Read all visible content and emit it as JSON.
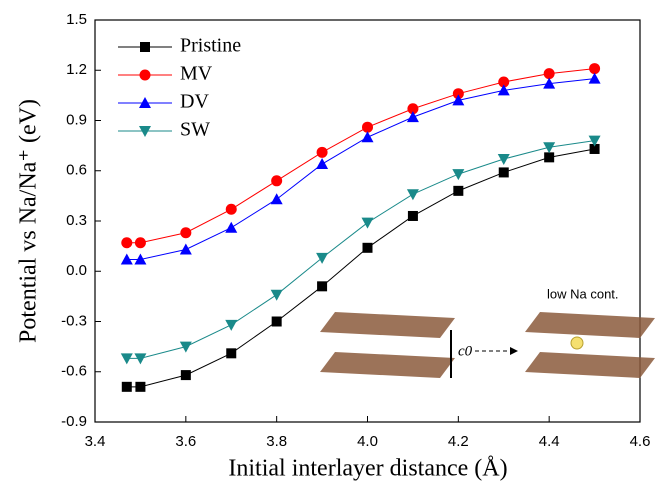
{
  "chart_data": {
    "type": "line",
    "xlabel": "Initial interlayer distance (Å)",
    "ylabel": "Potential vs Na/Na⁺ (eV)",
    "x": [
      3.47,
      3.5,
      3.6,
      3.7,
      3.8,
      3.9,
      4.0,
      4.1,
      4.2,
      4.3,
      4.4,
      4.5
    ],
    "series": [
      {
        "name": "Pristine",
        "color": "#000000",
        "marker": "square",
        "values": [
          -0.69,
          -0.69,
          -0.62,
          -0.49,
          -0.3,
          -0.09,
          0.14,
          0.33,
          0.48,
          0.59,
          0.68,
          0.73
        ]
      },
      {
        "name": "MV",
        "color": "#ff0000",
        "marker": "circle",
        "values": [
          0.17,
          0.17,
          0.23,
          0.37,
          0.54,
          0.71,
          0.86,
          0.97,
          1.06,
          1.13,
          1.18,
          1.21
        ]
      },
      {
        "name": "DV",
        "color": "#0000ff",
        "marker": "triangle-up",
        "values": [
          0.07,
          0.07,
          0.13,
          0.26,
          0.43,
          0.64,
          0.8,
          0.92,
          1.02,
          1.08,
          1.12,
          1.15
        ]
      },
      {
        "name": "SW",
        "color": "#1a8a8a",
        "marker": "triangle-down",
        "values": [
          -0.52,
          -0.52,
          -0.45,
          -0.32,
          -0.14,
          0.08,
          0.29,
          0.46,
          0.58,
          0.67,
          0.74,
          0.78
        ]
      }
    ],
    "xlim": [
      3.4,
      4.6
    ],
    "xticks": [
      3.4,
      3.6,
      3.8,
      {
        "value": 4.0,
        "label": "4.0"
      },
      4.2,
      4.4,
      4.6
    ],
    "ylim": [
      -0.9,
      1.5
    ],
    "yticks": [
      -0.9,
      -0.6,
      -0.3,
      {
        "value": 0,
        "label": "0.0"
      },
      0.3,
      0.6,
      0.9,
      1.2,
      1.5
    ],
    "legend": "upper left",
    "annotations": [
      "low Na cont.",
      "c0"
    ]
  }
}
